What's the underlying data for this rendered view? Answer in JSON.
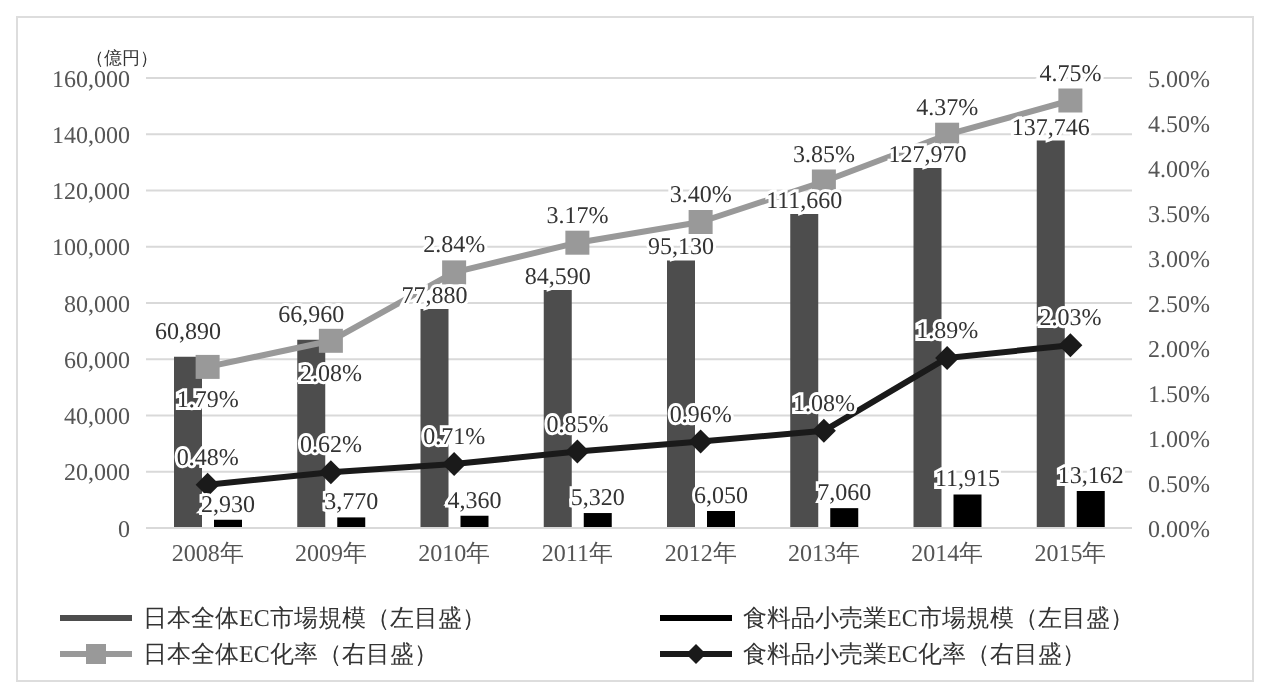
{
  "chart_data": {
    "type": "bar",
    "ylabel": "（億円）",
    "categories": [
      "2008年",
      "2009年",
      "2010年",
      "2011年",
      "2012年",
      "2013年",
      "2014年",
      "2015年"
    ],
    "series": [
      {
        "name": "日本全体EC市場規模（左目盛）",
        "color": "#4d4d4d",
        "values": [
          60890,
          66960,
          77880,
          84590,
          95130,
          111660,
          127970,
          137746
        ],
        "value_labels": [
          "60,890",
          "66,960",
          "77,880",
          "84,590",
          "95,130",
          "111,660",
          "127,970",
          "137,746"
        ]
      },
      {
        "name": "食料品小売業EC市場規模（左目盛）",
        "color": "#000000",
        "values": [
          2930,
          3770,
          4360,
          5320,
          6050,
          7060,
          11915,
          13162
        ],
        "value_labels": [
          "2,930",
          "3,770",
          "4,360",
          "5,320",
          "6,050",
          "7,060",
          "11,915",
          "13,162"
        ]
      },
      {
        "name": "日本全体EC化率（右目盛）",
        "type": "line",
        "axis": "y2",
        "marker": "square",
        "color": "#999999",
        "values": [
          1.79,
          2.08,
          2.84,
          3.17,
          3.4,
          3.85,
          4.37,
          4.75
        ],
        "value_labels": [
          "1.79%",
          "2.08%",
          "2.84%",
          "3.17%",
          "3.40%",
          "3.85%",
          "4.37%",
          "4.75%"
        ]
      },
      {
        "name": "食料品小売業EC化率（右目盛）",
        "type": "line",
        "axis": "y2",
        "marker": "diamond",
        "color": "#1a1a1a",
        "values": [
          0.48,
          0.62,
          0.71,
          0.85,
          0.96,
          1.08,
          1.89,
          2.03
        ],
        "value_labels": [
          "0.48%",
          "0.62%",
          "0.71%",
          "0.85%",
          "0.96%",
          "1.08%",
          "1.89%",
          "2.03%"
        ]
      }
    ],
    "ylim": [
      0,
      160000
    ],
    "yticks": [
      {
        "value": 0,
        "label": "0"
      },
      {
        "value": 20000,
        "label": "20,000"
      },
      {
        "value": 40000,
        "label": "40,000"
      },
      {
        "value": 60000,
        "label": "60,000"
      },
      {
        "value": 80000,
        "label": "80,000"
      },
      {
        "value": 100000,
        "label": "100,000"
      },
      {
        "value": 120000,
        "label": "120,000"
      },
      {
        "value": 140000,
        "label": "140,000"
      },
      {
        "value": 160000,
        "label": "160,000"
      }
    ],
    "y2lim": [
      0,
      5
    ],
    "y2ticks": [
      {
        "value": 0,
        "label": "0.00%"
      },
      {
        "value": 0.5,
        "label": "0.50%"
      },
      {
        "value": 1,
        "label": "1.00%"
      },
      {
        "value": 1.5,
        "label": "1.50%"
      },
      {
        "value": 2,
        "label": "2.00%"
      },
      {
        "value": 2.5,
        "label": "2.50%"
      },
      {
        "value": 3,
        "label": "3.00%"
      },
      {
        "value": 3.5,
        "label": "3.50%"
      },
      {
        "value": 4,
        "label": "4.00%"
      },
      {
        "value": 4.5,
        "label": "4.50%"
      },
      {
        "value": 5,
        "label": "5.00%"
      }
    ],
    "grid": "y",
    "legend": "bottom"
  }
}
